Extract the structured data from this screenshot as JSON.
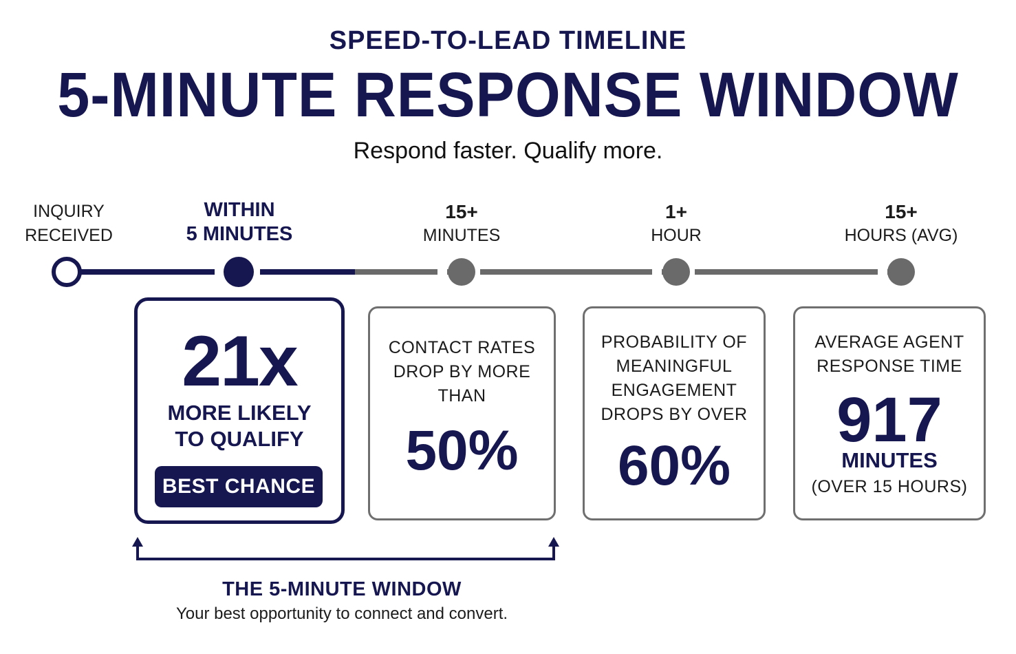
{
  "header": {
    "eyebrow": "SPEED-TO-LEAD TIMELINE",
    "title": "5-MINUTE RESPONSE WINDOW",
    "subtitle": "Respond faster. Qualify more."
  },
  "stages": [
    {
      "line1": "INQUIRY",
      "line2": "RECEIVED"
    },
    {
      "line1": "WITHIN",
      "line2": "5 MINUTES"
    },
    {
      "line1": "15+",
      "line2": "MINUTES"
    },
    {
      "line1": "1+",
      "line2": "HOUR"
    },
    {
      "line1": "15+",
      "line2": "HOURS (AVG)"
    }
  ],
  "cards": {
    "best": {
      "stat": "21x",
      "line1": "MORE LIKELY",
      "line2": "TO QUALIFY",
      "badge": "BEST CHANCE"
    },
    "contact": {
      "line1": "CONTACT RATES",
      "line2": "DROP BY MORE",
      "line3": "THAN",
      "stat": "50%"
    },
    "engagement": {
      "line1": "PROBABILITY OF",
      "line2": "MEANINGFUL",
      "line3": "ENGAGEMENT",
      "line4": "DROPS BY OVER",
      "stat": "60%"
    },
    "average": {
      "line1": "AVERAGE AGENT",
      "line2": "RESPONSE TIME",
      "stat": "917",
      "unit": "MINUTES",
      "note": "(OVER 15 HOURS)"
    }
  },
  "window": {
    "title": "THE 5-MINUTE WINDOW",
    "subtitle": "Your best opportunity to connect and convert."
  },
  "colors": {
    "navy": "#161650",
    "gray": "#6f6f6f",
    "node_gray": "#6a6a6a"
  }
}
